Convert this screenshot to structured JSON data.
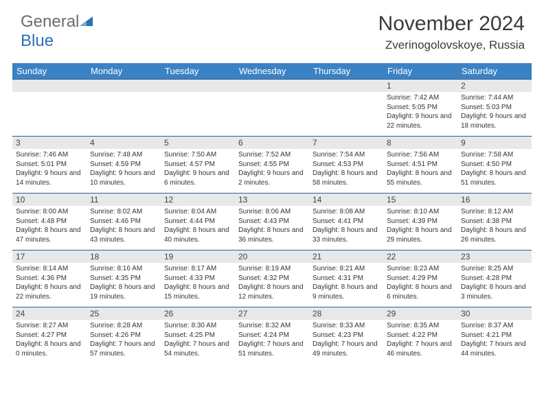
{
  "brand": {
    "part1": "General",
    "part2": "Blue"
  },
  "title": "November 2024",
  "location": "Zverinogolovskoye, Russia",
  "colors": {
    "header_bg": "#3a82c4",
    "header_text": "#ffffff",
    "daynum_bg": "#e6e8ea",
    "week_border": "#2f5e8f",
    "logo_gray": "#6b6b6b",
    "logo_blue": "#2c6fb5",
    "text": "#333333"
  },
  "day_labels": [
    "Sunday",
    "Monday",
    "Tuesday",
    "Wednesday",
    "Thursday",
    "Friday",
    "Saturday"
  ],
  "weeks": [
    [
      {
        "day": "",
        "sunrise": "",
        "sunset": "",
        "daylight": ""
      },
      {
        "day": "",
        "sunrise": "",
        "sunset": "",
        "daylight": ""
      },
      {
        "day": "",
        "sunrise": "",
        "sunset": "",
        "daylight": ""
      },
      {
        "day": "",
        "sunrise": "",
        "sunset": "",
        "daylight": ""
      },
      {
        "day": "",
        "sunrise": "",
        "sunset": "",
        "daylight": ""
      },
      {
        "day": "1",
        "sunrise": "Sunrise: 7:42 AM",
        "sunset": "Sunset: 5:05 PM",
        "daylight": "Daylight: 9 hours and 22 minutes."
      },
      {
        "day": "2",
        "sunrise": "Sunrise: 7:44 AM",
        "sunset": "Sunset: 5:03 PM",
        "daylight": "Daylight: 9 hours and 18 minutes."
      }
    ],
    [
      {
        "day": "3",
        "sunrise": "Sunrise: 7:46 AM",
        "sunset": "Sunset: 5:01 PM",
        "daylight": "Daylight: 9 hours and 14 minutes."
      },
      {
        "day": "4",
        "sunrise": "Sunrise: 7:48 AM",
        "sunset": "Sunset: 4:59 PM",
        "daylight": "Daylight: 9 hours and 10 minutes."
      },
      {
        "day": "5",
        "sunrise": "Sunrise: 7:50 AM",
        "sunset": "Sunset: 4:57 PM",
        "daylight": "Daylight: 9 hours and 6 minutes."
      },
      {
        "day": "6",
        "sunrise": "Sunrise: 7:52 AM",
        "sunset": "Sunset: 4:55 PM",
        "daylight": "Daylight: 9 hours and 2 minutes."
      },
      {
        "day": "7",
        "sunrise": "Sunrise: 7:54 AM",
        "sunset": "Sunset: 4:53 PM",
        "daylight": "Daylight: 8 hours and 58 minutes."
      },
      {
        "day": "8",
        "sunrise": "Sunrise: 7:56 AM",
        "sunset": "Sunset: 4:51 PM",
        "daylight": "Daylight: 8 hours and 55 minutes."
      },
      {
        "day": "9",
        "sunrise": "Sunrise: 7:58 AM",
        "sunset": "Sunset: 4:50 PM",
        "daylight": "Daylight: 8 hours and 51 minutes."
      }
    ],
    [
      {
        "day": "10",
        "sunrise": "Sunrise: 8:00 AM",
        "sunset": "Sunset: 4:48 PM",
        "daylight": "Daylight: 8 hours and 47 minutes."
      },
      {
        "day": "11",
        "sunrise": "Sunrise: 8:02 AM",
        "sunset": "Sunset: 4:46 PM",
        "daylight": "Daylight: 8 hours and 43 minutes."
      },
      {
        "day": "12",
        "sunrise": "Sunrise: 8:04 AM",
        "sunset": "Sunset: 4:44 PM",
        "daylight": "Daylight: 8 hours and 40 minutes."
      },
      {
        "day": "13",
        "sunrise": "Sunrise: 8:06 AM",
        "sunset": "Sunset: 4:43 PM",
        "daylight": "Daylight: 8 hours and 36 minutes."
      },
      {
        "day": "14",
        "sunrise": "Sunrise: 8:08 AM",
        "sunset": "Sunset: 4:41 PM",
        "daylight": "Daylight: 8 hours and 33 minutes."
      },
      {
        "day": "15",
        "sunrise": "Sunrise: 8:10 AM",
        "sunset": "Sunset: 4:39 PM",
        "daylight": "Daylight: 8 hours and 29 minutes."
      },
      {
        "day": "16",
        "sunrise": "Sunrise: 8:12 AM",
        "sunset": "Sunset: 4:38 PM",
        "daylight": "Daylight: 8 hours and 26 minutes."
      }
    ],
    [
      {
        "day": "17",
        "sunrise": "Sunrise: 8:14 AM",
        "sunset": "Sunset: 4:36 PM",
        "daylight": "Daylight: 8 hours and 22 minutes."
      },
      {
        "day": "18",
        "sunrise": "Sunrise: 8:16 AM",
        "sunset": "Sunset: 4:35 PM",
        "daylight": "Daylight: 8 hours and 19 minutes."
      },
      {
        "day": "19",
        "sunrise": "Sunrise: 8:17 AM",
        "sunset": "Sunset: 4:33 PM",
        "daylight": "Daylight: 8 hours and 15 minutes."
      },
      {
        "day": "20",
        "sunrise": "Sunrise: 8:19 AM",
        "sunset": "Sunset: 4:32 PM",
        "daylight": "Daylight: 8 hours and 12 minutes."
      },
      {
        "day": "21",
        "sunrise": "Sunrise: 8:21 AM",
        "sunset": "Sunset: 4:31 PM",
        "daylight": "Daylight: 8 hours and 9 minutes."
      },
      {
        "day": "22",
        "sunrise": "Sunrise: 8:23 AM",
        "sunset": "Sunset: 4:29 PM",
        "daylight": "Daylight: 8 hours and 6 minutes."
      },
      {
        "day": "23",
        "sunrise": "Sunrise: 8:25 AM",
        "sunset": "Sunset: 4:28 PM",
        "daylight": "Daylight: 8 hours and 3 minutes."
      }
    ],
    [
      {
        "day": "24",
        "sunrise": "Sunrise: 8:27 AM",
        "sunset": "Sunset: 4:27 PM",
        "daylight": "Daylight: 8 hours and 0 minutes."
      },
      {
        "day": "25",
        "sunrise": "Sunrise: 8:28 AM",
        "sunset": "Sunset: 4:26 PM",
        "daylight": "Daylight: 7 hours and 57 minutes."
      },
      {
        "day": "26",
        "sunrise": "Sunrise: 8:30 AM",
        "sunset": "Sunset: 4:25 PM",
        "daylight": "Daylight: 7 hours and 54 minutes."
      },
      {
        "day": "27",
        "sunrise": "Sunrise: 8:32 AM",
        "sunset": "Sunset: 4:24 PM",
        "daylight": "Daylight: 7 hours and 51 minutes."
      },
      {
        "day": "28",
        "sunrise": "Sunrise: 8:33 AM",
        "sunset": "Sunset: 4:23 PM",
        "daylight": "Daylight: 7 hours and 49 minutes."
      },
      {
        "day": "29",
        "sunrise": "Sunrise: 8:35 AM",
        "sunset": "Sunset: 4:22 PM",
        "daylight": "Daylight: 7 hours and 46 minutes."
      },
      {
        "day": "30",
        "sunrise": "Sunrise: 8:37 AM",
        "sunset": "Sunset: 4:21 PM",
        "daylight": "Daylight: 7 hours and 44 minutes."
      }
    ]
  ]
}
